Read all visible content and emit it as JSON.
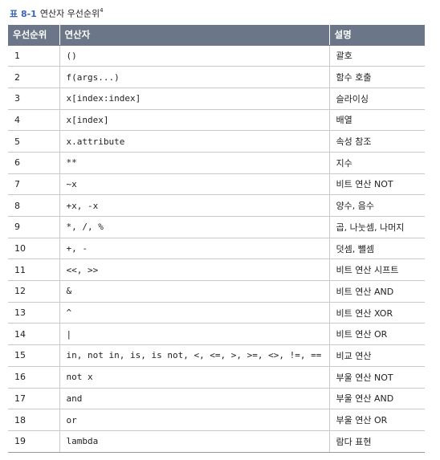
{
  "caption": {
    "label": "표 8-1",
    "title": "연산자 우선순위",
    "footnote": "4"
  },
  "table": {
    "headers": [
      "우선순위",
      "연산자",
      "설명"
    ],
    "rows": [
      {
        "rank": "1",
        "operator": "()",
        "description": "괄호"
      },
      {
        "rank": "2",
        "operator": "f(args...)",
        "description": "함수 호출"
      },
      {
        "rank": "3",
        "operator": "x[index:index]",
        "description": "슬라이싱"
      },
      {
        "rank": "4",
        "operator": "x[index]",
        "description": "배열"
      },
      {
        "rank": "5",
        "operator": "x.attribute",
        "description": "속성 참조"
      },
      {
        "rank": "6",
        "operator": "**",
        "description": "지수"
      },
      {
        "rank": "7",
        "operator": "~x",
        "description": "비트 연산 NOT"
      },
      {
        "rank": "8",
        "operator": "+x, -x",
        "description": "양수, 음수"
      },
      {
        "rank": "9",
        "operator": "*, /, %",
        "description": "곱, 나눗셈, 나머지"
      },
      {
        "rank": "10",
        "operator": "+, -",
        "description": "덧셈, 뺄셈"
      },
      {
        "rank": "11",
        "operator": "<<, >>",
        "description": "비트 연산 시프트"
      },
      {
        "rank": "12",
        "operator": "&",
        "description": "비트 연산 AND"
      },
      {
        "rank": "13",
        "operator": "^",
        "description": "비트 연산 XOR"
      },
      {
        "rank": "14",
        "operator": "|",
        "description": "비트 연산 OR"
      },
      {
        "rank": "15",
        "operator": "in, not in, is, is not, <, <=, >, >=, <>, !=, ==",
        "description": "비교 연산"
      },
      {
        "rank": "16",
        "operator": "not x",
        "description": "부울 연산 NOT"
      },
      {
        "rank": "17",
        "operator": "and",
        "description": "부울 연산 AND"
      },
      {
        "rank": "18",
        "operator": "or",
        "description": "부울 연산 OR"
      },
      {
        "rank": "19",
        "operator": "lambda",
        "description": "람다 표현"
      }
    ]
  },
  "colors": {
    "caption_label": "#3a66b8",
    "header_background": "#6b7789",
    "header_text": "#ffffff",
    "row_border": "#c9c9c9"
  }
}
